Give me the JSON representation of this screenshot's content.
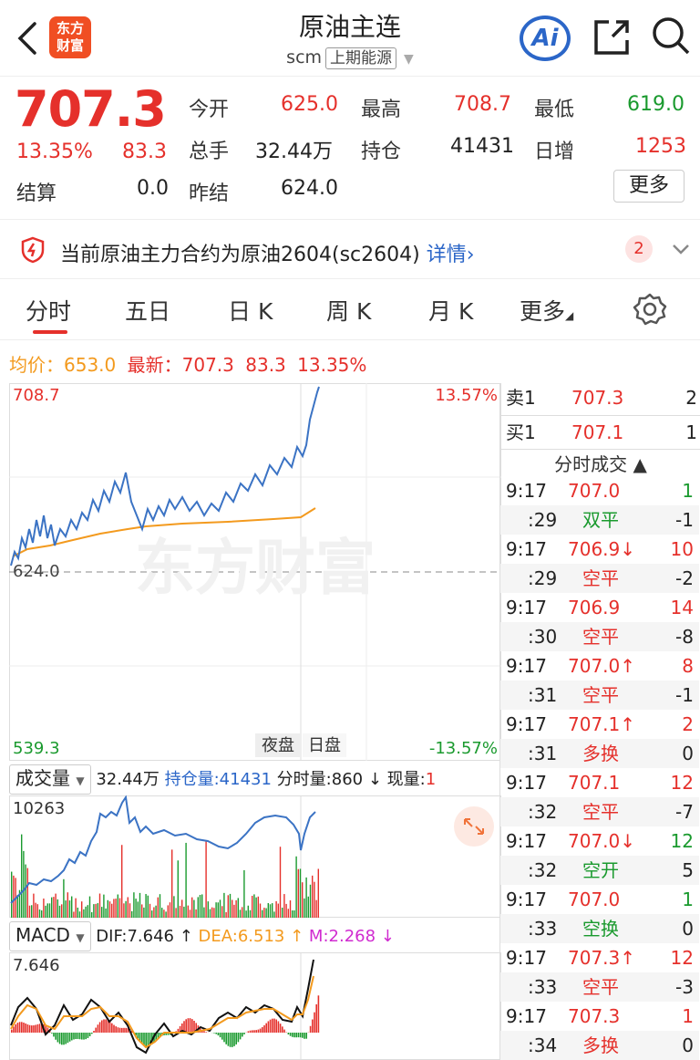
{
  "header": {
    "title": "原油主连",
    "code": "scm",
    "exchange": "上期能源",
    "logo_line1": "东方",
    "logo_line2": "财富",
    "ai_label": "Ai"
  },
  "quote": {
    "price": "707.3",
    "change_pct": "13.35%",
    "change": "83.3",
    "settle_label": "结算",
    "settle": "0.0",
    "open_label": "今开",
    "open": "625.0",
    "volume_label": "总手",
    "volume": "32.44万",
    "prev_settle_label": "昨结",
    "prev_settle": "624.0",
    "high_label": "最高",
    "high": "708.7",
    "oi_label": "持仓",
    "oi": "41431",
    "low_label": "最低",
    "low": "619.0",
    "daily_inc_label": "日增",
    "daily_inc": "1253",
    "more_label": "更多"
  },
  "notice": {
    "text": "当前原油主力合约为原油2604(sc2604)",
    "link": "详情›",
    "badge": "2"
  },
  "tabs": [
    "分时",
    "五日",
    "日 K",
    "周 K",
    "月 K",
    "更多"
  ],
  "summary": {
    "avg_label": "均价：",
    "avg": "653.0",
    "latest_label": "最新：",
    "latest": "707.3",
    "change": "83.3",
    "change_pct": "13.35%"
  },
  "chart": {
    "y_max": "708.7",
    "y_mid": "624.0",
    "y_min": "539.3",
    "pct_max": "13.57%",
    "pct_min": "-13.57%",
    "night_label": "夜盘",
    "day_label": "日盘",
    "watermark": "东方财富"
  },
  "volume": {
    "selector": "成交量",
    "total": "32.44万",
    "oi_label": "持仓量:",
    "oi": "41431",
    "minute_label": "分时量:",
    "minute": "860 ↓",
    "now_label": "现量:",
    "now": "1",
    "axis_max": "10263"
  },
  "macd": {
    "selector": "MACD",
    "dif": "DIF:7.646 ↑",
    "dea": "DEA:6.513 ↑",
    "m": "M:2.268 ↓",
    "axis_max": "7.646"
  },
  "orderbook": {
    "sell_label": "卖1",
    "sell_price": "707.3",
    "sell_vol": "2",
    "buy_label": "买1",
    "buy_price": "707.1",
    "buy_vol": "1",
    "ticks_title": "分时成交 ▲"
  },
  "trades": [
    {
      "time": "9:17",
      "price": "707.0",
      "vol": "1",
      "pc": "red",
      "vc": "green"
    },
    {
      "time": ":29",
      "price": "双平",
      "vol": "-1",
      "pc": "green",
      "vc": "dark"
    },
    {
      "time": "9:17",
      "price": "706.9↓",
      "vol": "10",
      "pc": "red",
      "vc": "red"
    },
    {
      "time": ":29",
      "price": "空平",
      "vol": "-2",
      "pc": "red",
      "vc": "dark"
    },
    {
      "time": "9:17",
      "price": "706.9",
      "vol": "14",
      "pc": "red",
      "vc": "red"
    },
    {
      "time": ":30",
      "price": "空平",
      "vol": "-8",
      "pc": "red",
      "vc": "dark"
    },
    {
      "time": "9:17",
      "price": "707.0↑",
      "vol": "8",
      "pc": "red",
      "vc": "red"
    },
    {
      "time": ":31",
      "price": "空平",
      "vol": "-1",
      "pc": "red",
      "vc": "dark"
    },
    {
      "time": "9:17",
      "price": "707.1↑",
      "vol": "2",
      "pc": "red",
      "vc": "red"
    },
    {
      "time": ":31",
      "price": "多换",
      "vol": "0",
      "pc": "red",
      "vc": "dark"
    },
    {
      "time": "9:17",
      "price": "707.1",
      "vol": "12",
      "pc": "red",
      "vc": "red"
    },
    {
      "time": ":32",
      "price": "空平",
      "vol": "-7",
      "pc": "red",
      "vc": "dark"
    },
    {
      "time": "9:17",
      "price": "707.0↓",
      "vol": "12",
      "pc": "red",
      "vc": "green"
    },
    {
      "time": ":32",
      "price": "空开",
      "vol": "5",
      "pc": "green",
      "vc": "dark"
    },
    {
      "time": "9:17",
      "price": "707.0",
      "vol": "1",
      "pc": "red",
      "vc": "green"
    },
    {
      "time": ":33",
      "price": "空换",
      "vol": "0",
      "pc": "green",
      "vc": "dark"
    },
    {
      "time": "9:17",
      "price": "707.3↑",
      "vol": "12",
      "pc": "red",
      "vc": "red"
    },
    {
      "time": ":33",
      "price": "空平",
      "vol": "-3",
      "pc": "red",
      "vc": "dark"
    },
    {
      "time": "9:17",
      "price": "707.3",
      "vol": "1",
      "pc": "red",
      "vc": "red"
    },
    {
      "time": ":34",
      "price": "多换",
      "vol": "0",
      "pc": "red",
      "vc": "dark"
    }
  ],
  "colors": {
    "up": "#e5302b",
    "down": "#1a9a2e",
    "price_line": "#3b73c4",
    "avg_line": "#f39a1e"
  }
}
